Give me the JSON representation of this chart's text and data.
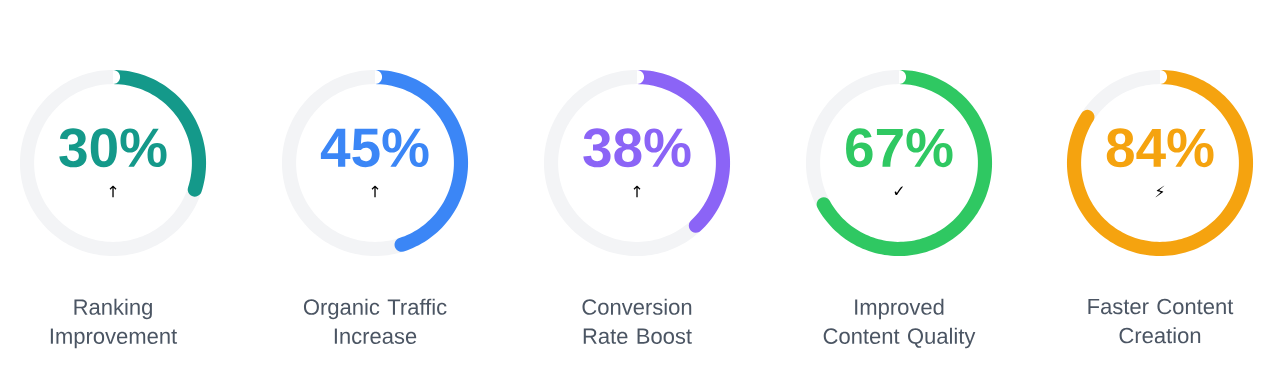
{
  "chart_data": [
    {
      "type": "donut",
      "title": "Ranking Improvement",
      "categories": [
        null,
        null
      ],
      "values": [
        30,
        70
      ],
      "colors": [
        "#14998a",
        "#f3f4f6"
      ],
      "value_labels": [
        "30%",
        null
      ],
      "annotations": [
        "↑"
      ]
    },
    {
      "type": "donut",
      "title": "Organic Traffic Increase",
      "categories": [
        null,
        null
      ],
      "values": [
        45,
        55
      ],
      "colors": [
        "#3b86f6",
        "#f3f4f6"
      ],
      "value_labels": [
        "45%",
        null
      ],
      "annotations": [
        "↑"
      ]
    },
    {
      "type": "donut",
      "title": "Conversion Rate Boost",
      "categories": [
        null,
        null
      ],
      "values": [
        38,
        62
      ],
      "colors": [
        "#8b64f6",
        "#f3f4f6"
      ],
      "value_labels": [
        "38%",
        null
      ],
      "annotations": [
        "↑"
      ]
    },
    {
      "type": "donut",
      "title": "Improved Content Quality",
      "categories": [
        null,
        null
      ],
      "values": [
        67,
        33
      ],
      "colors": [
        "#2fc862",
        "#f3f4f6"
      ],
      "value_labels": [
        "67%",
        null
      ],
      "annotations": [
        "✓"
      ]
    },
    {
      "type": "donut",
      "title": "Faster Content Creation",
      "categories": [
        null,
        null
      ],
      "values": [
        84,
        16
      ],
      "colors": [
        "#f5a30f",
        "#f3f4f6"
      ],
      "value_labels": [
        "84%",
        null
      ],
      "annotations": [
        "⚡"
      ]
    }
  ]
}
